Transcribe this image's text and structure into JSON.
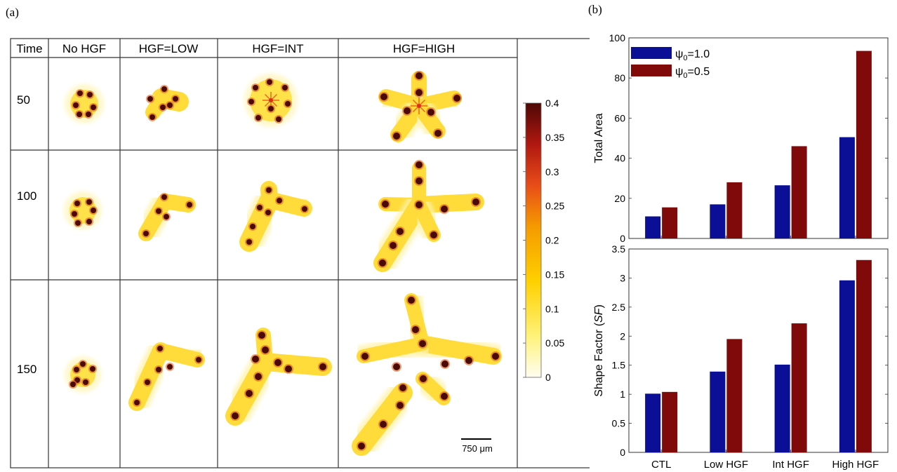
{
  "panel_a": {
    "label": "(a)",
    "corner_header": "Time",
    "columns": [
      "No HGF",
      "HGF=LOW",
      "HGF=INT",
      "HGF=HIGH"
    ],
    "rows": [
      "50",
      "100",
      "150"
    ],
    "colorbar": {
      "ticks": [
        "0.4",
        "0.35",
        "0.3",
        "0.25",
        "0.2",
        "0.15",
        "0.1",
        "0.05",
        "0"
      ],
      "colors": [
        "#fffbe6",
        "#fff27a",
        "#ffd400",
        "#f6a000",
        "#e8541a",
        "#b81a10",
        "#5c0a08"
      ]
    },
    "scalebar": "750 μm"
  },
  "panel_b": {
    "label": "(b)",
    "colors": {
      "psi1": "#0a0f96",
      "psi05": "#800a0a"
    }
  },
  "chart_data": [
    {
      "type": "bar",
      "title": "",
      "categories": [
        "CTL",
        "Low HGF",
        "Int HGF",
        "High HGF"
      ],
      "series": [
        {
          "name": "ψ0=1.0",
          "values": [
            11,
            17,
            26.5,
            50.5
          ]
        },
        {
          "name": "ψ0=0.5",
          "values": [
            15.5,
            28,
            46,
            93.5
          ]
        }
      ],
      "xlabel": "",
      "ylabel": "Total Area",
      "ylim": [
        0,
        100
      ],
      "yticks": [
        "0",
        "20",
        "40",
        "60",
        "80",
        "100"
      ],
      "legend": "top-left"
    },
    {
      "type": "bar",
      "title": "",
      "categories": [
        "CTL",
        "Low HGF",
        "Int HGF",
        "High HGF"
      ],
      "series": [
        {
          "name": "ψ0=1.0",
          "values": [
            1.01,
            1.39,
            1.51,
            2.96
          ]
        },
        {
          "name": "ψ0=0.5",
          "values": [
            1.04,
            1.95,
            2.22,
            3.31
          ]
        }
      ],
      "xlabel": "",
      "ylabel": "Shape Factor (SF)",
      "ylim": [
        0,
        3.5
      ],
      "yticks": [
        "0",
        "0.5",
        "1",
        "1.5",
        "2",
        "2.5",
        "3",
        "3.5"
      ]
    }
  ]
}
